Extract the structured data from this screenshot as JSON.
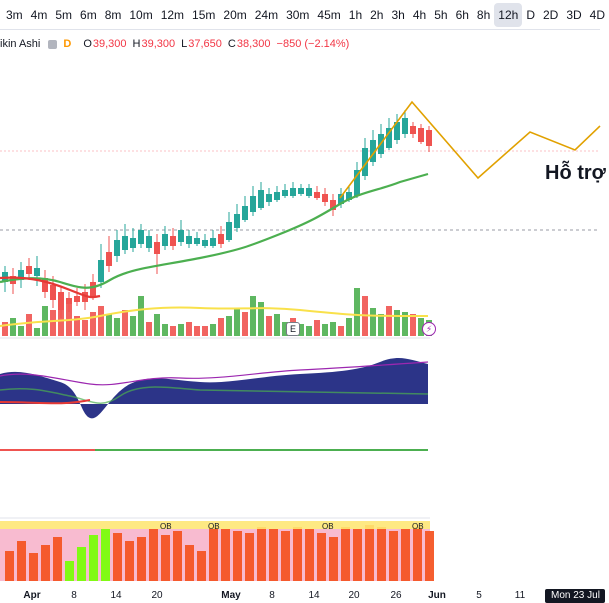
{
  "timeframes": [
    "3m",
    "4m",
    "5m",
    "6m",
    "8m",
    "10m",
    "12m",
    "15m",
    "20m",
    "24m",
    "30m",
    "45m",
    "1h",
    "2h",
    "3h",
    "4h",
    "5h",
    "6h",
    "8h",
    "12h",
    "D",
    "2D",
    "3D",
    "4D"
  ],
  "active_timeframe_index": 19,
  "legend": {
    "name": "ikin Ashi",
    "tag": "D",
    "open_label": "O",
    "open": "39,300",
    "high_label": "H",
    "high": "39,300",
    "low_label": "L",
    "low": "37,650",
    "close_label": "C",
    "close": "38,300",
    "change": "−850 (−2.14%)"
  },
  "annotation_text": "Hỗ trợ",
  "markers": {
    "earnings": "E",
    "flash": "⚡"
  },
  "indicator_labels": {
    "ob": "OB"
  },
  "time_axis": {
    "labels": [
      "Apr",
      "8",
      "14",
      "20",
      "May",
      "8",
      "14",
      "20",
      "26",
      "Jun",
      "5",
      "11"
    ],
    "bold": [
      "Apr",
      "May",
      "Jun"
    ],
    "cursor_date": "Mon 23 Jul"
  },
  "colors": {
    "up": "#26a69a",
    "down": "#ef5350",
    "ma_green": "#4caf50",
    "ma_red": "#e53935",
    "ma_yellow": "#f9e14b",
    "projection": "#e1a100",
    "band_dark": "#1a237e",
    "ob_orange": "#f4511e",
    "ob_pink": "#f8bbd0",
    "ob_yellow": "#fff176",
    "ob_green": "#76ff03"
  }
}
